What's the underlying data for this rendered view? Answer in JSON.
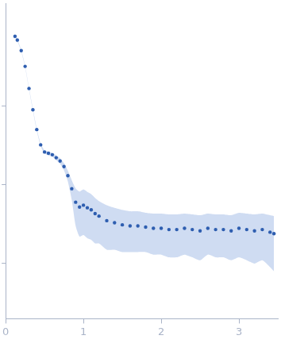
{
  "chart_data": {
    "type": "scatter",
    "log": "y",
    "grid": false,
    "tick_labels": "x",
    "color": "#2e5eb0",
    "marker": "circle",
    "xlim": [
      0,
      3.5
    ],
    "xticks": [
      0,
      1,
      2,
      3
    ],
    "ylim": [
      0.002,
      20
    ],
    "yticks": [
      0.01,
      0.1,
      1
    ],
    "x": [
      0.12,
      0.15,
      0.2,
      0.25,
      0.3,
      0.35,
      0.4,
      0.45,
      0.5,
      0.55,
      0.6,
      0.65,
      0.7,
      0.75,
      0.8,
      0.85,
      0.9,
      0.95,
      1.0,
      1.05,
      1.1,
      1.15,
      1.2,
      1.3,
      1.4,
      1.5,
      1.6,
      1.7,
      1.8,
      1.9,
      2.0,
      2.1,
      2.2,
      2.3,
      2.4,
      2.5,
      2.6,
      2.7,
      2.8,
      2.9,
      3.0,
      3.1,
      3.2,
      3.3,
      3.4,
      3.45
    ],
    "values": [
      7.6,
      6.8,
      5.0,
      3.16,
      1.66,
      0.89,
      0.5,
      0.32,
      0.26,
      0.25,
      0.24,
      0.22,
      0.2,
      0.17,
      0.13,
      0.089,
      0.06,
      0.052,
      0.055,
      0.051,
      0.048,
      0.043,
      0.04,
      0.035,
      0.033,
      0.031,
      0.03,
      0.03,
      0.029,
      0.028,
      0.028,
      0.027,
      0.027,
      0.028,
      0.027,
      0.026,
      0.028,
      0.027,
      0.027,
      0.026,
      0.028,
      0.027,
      0.026,
      0.027,
      0.025,
      0.024
    ],
    "error": [
      0.15,
      0.14,
      0.1,
      0.07,
      0.04,
      0.025,
      0.015,
      0.012,
      0.012,
      0.013,
      0.014,
      0.015,
      0.016,
      0.018,
      0.02,
      0.025,
      0.03,
      0.03,
      0.032,
      0.03,
      0.028,
      0.025,
      0.022,
      0.02,
      0.018,
      0.017,
      0.016,
      0.016,
      0.015,
      0.015,
      0.015,
      0.015,
      0.015,
      0.015,
      0.015,
      0.015,
      0.015,
      0.015,
      0.015,
      0.015,
      0.016,
      0.016,
      0.016,
      0.016,
      0.016,
      0.016
    ]
  }
}
